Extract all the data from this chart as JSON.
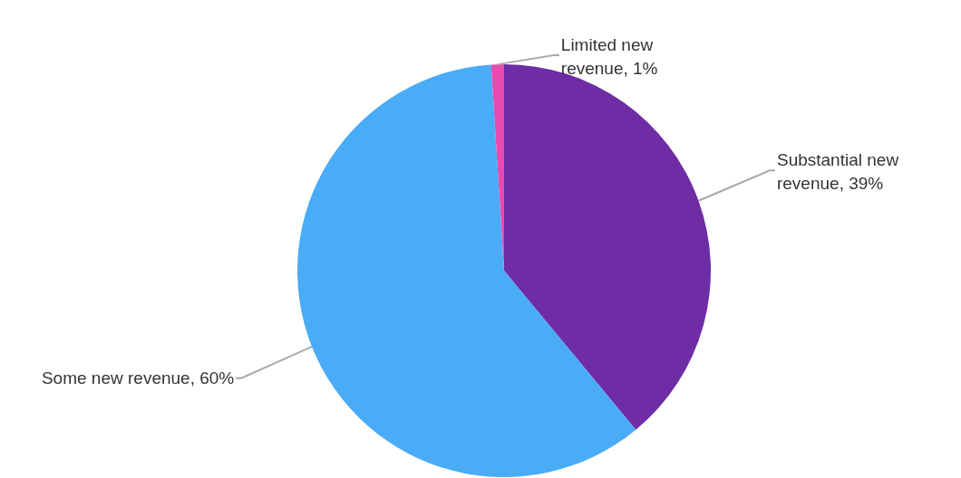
{
  "chart_data": {
    "type": "pie",
    "categories": [
      "Substantial new revenue",
      "Some new revenue",
      "Limited new revenue"
    ],
    "values": [
      39,
      60,
      1
    ],
    "colors": [
      "#6e2ca5",
      "#4aabf7",
      "#e84bb0"
    ],
    "value_labels": [
      "39%",
      "60%",
      "1%"
    ],
    "legend": false
  }
}
